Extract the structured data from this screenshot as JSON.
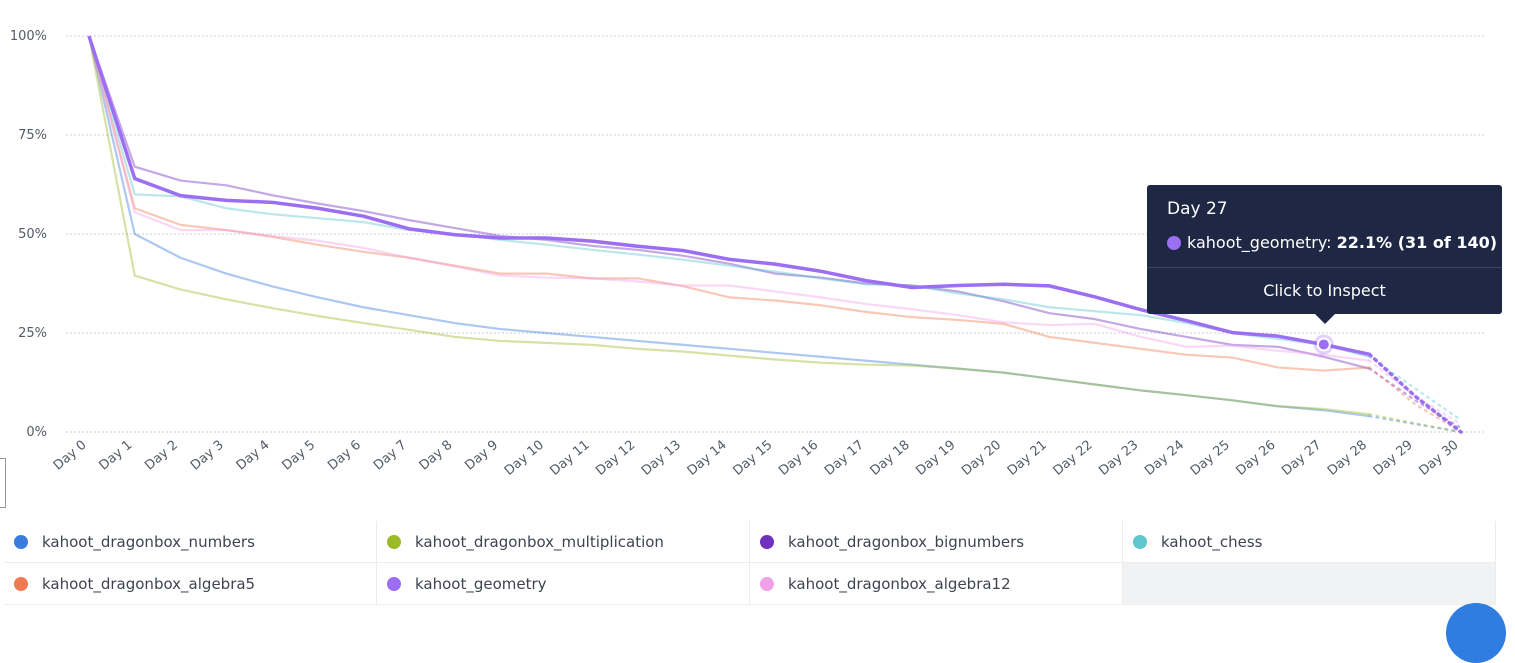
{
  "chart_data": {
    "type": "line",
    "categories": [
      "Day 0",
      "Day 1",
      "Day 2",
      "Day 3",
      "Day 4",
      "Day 5",
      "Day 6",
      "Day 7",
      "Day 8",
      "Day 9",
      "Day 10",
      "Day 11",
      "Day 12",
      "Day 13",
      "Day 14",
      "Day 15",
      "Day 16",
      "Day 17",
      "Day 18",
      "Day 19",
      "Day 20",
      "Day 21",
      "Day 22",
      "Day 23",
      "Day 24",
      "Day 25",
      "Day 26",
      "Day 27",
      "Day 28",
      "Day 29",
      "Day 30"
    ],
    "yticks": [
      "0%",
      "25%",
      "50%",
      "75%",
      "100%"
    ],
    "ylim": [
      0,
      100
    ],
    "grid": true,
    "complete_through_index": 28,
    "series": [
      {
        "name": "kahoot_dragonbox_numbers",
        "color": "#3a7be0",
        "values": [
          100,
          50,
          44,
          40,
          36.8,
          34,
          31.5,
          29.5,
          27.5,
          26,
          25,
          24,
          23,
          22,
          21,
          20,
          19,
          18,
          17,
          16,
          15,
          13.5,
          12,
          10.5,
          9.3,
          8,
          6.5,
          5.5,
          4,
          2,
          0
        ]
      },
      {
        "name": "kahoot_dragonbox_multiplication",
        "color": "#9cba28",
        "values": [
          100,
          39.5,
          36,
          33.5,
          31.3,
          29.3,
          27.5,
          25.8,
          24,
          23,
          22.5,
          22,
          21,
          20.3,
          19.3,
          18.3,
          17.5,
          17,
          16.8,
          16,
          15,
          13.5,
          12,
          10.5,
          9.3,
          8,
          6.5,
          5.8,
          4.5,
          2.2,
          0
        ]
      },
      {
        "name": "kahoot_dragonbox_bignumbers",
        "color": "#7030c0",
        "values": [
          100,
          67,
          63.5,
          62.3,
          59.8,
          57.7,
          55.8,
          53.5,
          51.5,
          49.5,
          48.5,
          47,
          46,
          44.5,
          42.5,
          40,
          39,
          37.5,
          37,
          35.5,
          33,
          30,
          28.5,
          26,
          24,
          22,
          21.5,
          19,
          16,
          8,
          1
        ]
      },
      {
        "name": "kahoot_chess",
        "color": "#5ec6cc",
        "values": [
          100,
          60,
          59.5,
          56.5,
          55,
          54,
          53,
          51,
          50,
          48.5,
          47.3,
          46,
          44.8,
          43.5,
          42,
          40.5,
          38.8,
          37.3,
          37,
          35,
          33.5,
          31.5,
          30.5,
          29.5,
          27.5,
          25,
          23.5,
          22,
          19,
          11,
          3
        ]
      },
      {
        "name": "kahoot_dragonbox_algebra5",
        "color": "#f07a52",
        "values": [
          100,
          56.5,
          52.3,
          51,
          49.3,
          47.3,
          45.5,
          44,
          42,
          40,
          40,
          38.8,
          38.8,
          36.8,
          34,
          33.2,
          32,
          30.3,
          29,
          28.3,
          27.3,
          24,
          22.5,
          21,
          19.5,
          18.8,
          16.3,
          15.5,
          16.3,
          7,
          0
        ]
      },
      {
        "name": "kahoot_geometry",
        "color": "#9b6ef3",
        "values": [
          100,
          64,
          59.7,
          58.5,
          58,
          56.5,
          54.5,
          51.3,
          49.8,
          49,
          49,
          48.2,
          46.9,
          45.8,
          43.6,
          42.4,
          40.6,
          38.2,
          36.5,
          37,
          37.3,
          36.9,
          34.1,
          30.9,
          28.1,
          25.1,
          24.2,
          22.1,
          19.6,
          9,
          0
        ]
      },
      {
        "name": "kahoot_dragonbox_algebra12",
        "color": "#f0a0e8",
        "values": [
          100,
          55.5,
          51,
          51,
          49.5,
          48.3,
          46.5,
          44,
          41.8,
          39.5,
          39,
          38.8,
          38,
          37,
          37,
          35.5,
          34,
          32.3,
          31,
          29.5,
          27.7,
          27,
          27.3,
          24,
          21.5,
          21.8,
          20.5,
          19.5,
          18,
          9,
          2
        ]
      }
    ],
    "highlight_series": "kahoot_geometry"
  },
  "legend": {
    "items": [
      {
        "label": "kahoot_dragonbox_numbers",
        "color": "#3a7be0"
      },
      {
        "label": "kahoot_dragonbox_multiplication",
        "color": "#9cba28"
      },
      {
        "label": "kahoot_dragonbox_bignumbers",
        "color": "#7030c0"
      },
      {
        "label": "kahoot_chess",
        "color": "#5ec6cc"
      },
      {
        "label": "kahoot_dragonbox_algebra5",
        "color": "#f07a52"
      },
      {
        "label": "kahoot_geometry",
        "color": "#9b6ef3"
      },
      {
        "label": "kahoot_dragonbox_algebra12",
        "color": "#f0a0e8"
      }
    ]
  },
  "tooltip": {
    "title": "Day 27",
    "series": "kahoot_geometry:",
    "value": "22.1% (31 of 140)",
    "color": "#9b6ef3",
    "action": "Click to Inspect",
    "category_index": 27
  }
}
